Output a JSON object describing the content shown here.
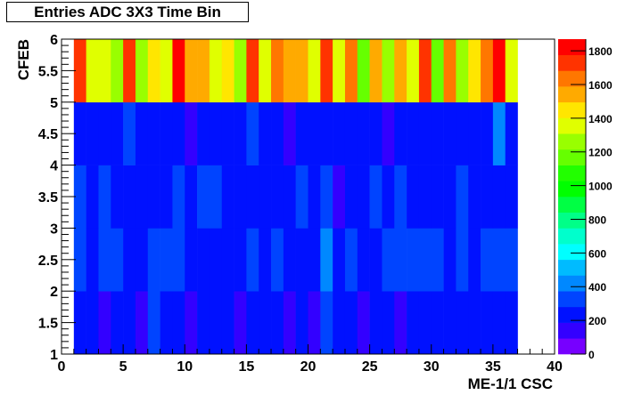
{
  "chart_data": {
    "type": "heatmap",
    "title": "Entries ADC 3X3 Time Bin",
    "xlabel": "ME-1/1 CSC",
    "ylabel": "CFEB",
    "xlim": [
      0,
      40
    ],
    "ylim": [
      1,
      6
    ],
    "zlim": [
      0,
      1869
    ],
    "x_ticks": [
      "0",
      "5",
      "10",
      "15",
      "20",
      "25",
      "30",
      "35",
      "40"
    ],
    "y_ticks": [
      "1",
      "1.5",
      "2",
      "2.5",
      "3",
      "3.5",
      "4",
      "4.5",
      "5",
      "5.5",
      "6"
    ],
    "z_ticks": [
      "0",
      "200",
      "400",
      "600",
      "800",
      "1000",
      "1200",
      "1400",
      "1600",
      "1800"
    ],
    "palette": [
      "#7700ff",
      "#3300ff",
      "#0011ff",
      "#0044ff",
      "#0088ff",
      "#00bbff",
      "#00ffff",
      "#00ffcc",
      "#00ff88",
      "#00ff44",
      "#00ff00",
      "#22ff00",
      "#66ff00",
      "#99ff00",
      "#e0ff00",
      "#ffe600",
      "#ffaa00",
      "#ff7700",
      "#ff3300",
      "#ff0000"
    ],
    "x_bin_start": 1,
    "y_bin_edges": [
      1,
      2,
      3,
      4,
      5,
      6
    ],
    "rows": [
      {
        "y": "1-2",
        "values": [
          230,
          230,
          140,
          230,
          230,
          140,
          330,
          230,
          230,
          140,
          230,
          230,
          230,
          140,
          230,
          230,
          230,
          140,
          230,
          140,
          330,
          230,
          230,
          140,
          230,
          230,
          140,
          230,
          230,
          230,
          230,
          230,
          230,
          230,
          230,
          230
        ]
      },
      {
        "y": "2-3",
        "values": [
          330,
          230,
          330,
          330,
          230,
          230,
          330,
          330,
          330,
          230,
          230,
          230,
          230,
          230,
          330,
          230,
          330,
          230,
          230,
          230,
          420,
          230,
          330,
          230,
          230,
          330,
          330,
          330,
          330,
          330,
          230,
          330,
          230,
          330,
          330,
          330
        ]
      },
      {
        "y": "3-4",
        "values": [
          330,
          230,
          330,
          230,
          230,
          230,
          230,
          230,
          330,
          230,
          330,
          330,
          230,
          230,
          230,
          230,
          230,
          230,
          330,
          230,
          330,
          140,
          230,
          230,
          330,
          230,
          330,
          230,
          230,
          230,
          230,
          330,
          230,
          230,
          230,
          230
        ]
      },
      {
        "y": "4-5",
        "values": [
          230,
          230,
          230,
          230,
          330,
          230,
          230,
          230,
          230,
          140,
          230,
          230,
          230,
          230,
          330,
          230,
          230,
          140,
          230,
          230,
          230,
          230,
          230,
          230,
          230,
          140,
          230,
          230,
          230,
          230,
          230,
          230,
          230,
          230,
          420,
          230
        ]
      },
      {
        "y": "5-6",
        "values": [
          1730,
          1355,
          1355,
          1260,
          1730,
          1260,
          1450,
          1355,
          1820,
          1545,
          1545,
          1355,
          1450,
          1260,
          1730,
          1355,
          1640,
          1545,
          1545,
          1355,
          1730,
          1355,
          1640,
          1170,
          1545,
          1260,
          1545,
          1355,
          1730,
          1170,
          1640,
          1260,
          1450,
          1640,
          1820,
          1355
        ]
      }
    ]
  }
}
